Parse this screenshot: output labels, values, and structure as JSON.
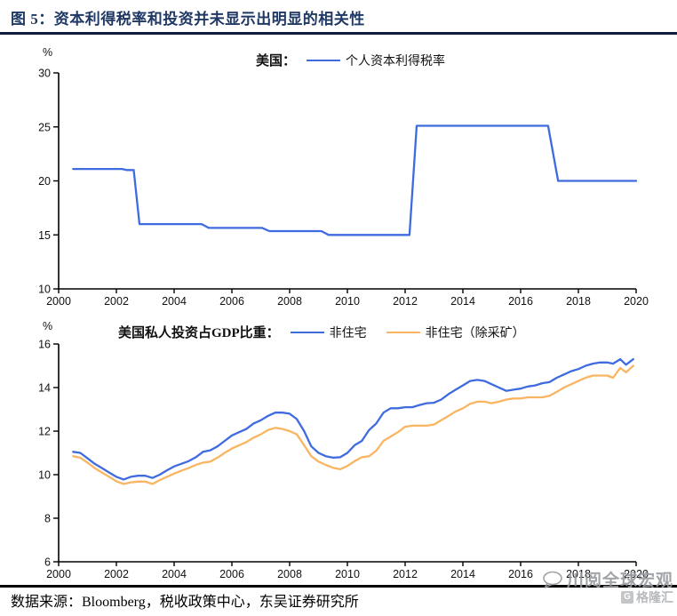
{
  "title": "图 5：资本利得税率和投资并未显示出明显的相关性",
  "footer": {
    "source": "数据来源：Bloomberg，税收政策中心，东吴证券研究所"
  },
  "watermark": {
    "line1": "川阅全球宏观",
    "line2": "格隆汇"
  },
  "colors": {
    "title_navy": "#1F3864",
    "line_blue": "#3E6BDF",
    "line_orange": "#F9B562"
  },
  "chart_data": [
    {
      "type": "line",
      "title": "美国：个人资本利得税率",
      "legend_prefix": "美国：",
      "unit": "%",
      "xlabel": "",
      "ylabel": "%",
      "xlim": [
        2000,
        2020
      ],
      "ylim": [
        10,
        30
      ],
      "x_ticks": [
        2000,
        2002,
        2004,
        2006,
        2008,
        2010,
        2012,
        2014,
        2016,
        2018,
        2020
      ],
      "y_ticks": [
        10,
        15,
        20,
        25,
        30
      ],
      "grid": false,
      "legend_position": "top",
      "series": [
        {
          "name": "个人资本利得税率",
          "color": "#3E6BDF",
          "points": [
            [
              2000.5,
              21.1
            ],
            [
              2002.2,
              21.1
            ],
            [
              2002.35,
              21.0
            ],
            [
              2002.6,
              21.0
            ],
            [
              2002.8,
              16.0
            ],
            [
              2004.95,
              16.0
            ],
            [
              2005.2,
              15.65
            ],
            [
              2007.05,
              15.65
            ],
            [
              2007.3,
              15.35
            ],
            [
              2009.1,
              15.35
            ],
            [
              2009.35,
              15.0
            ],
            [
              2012.15,
              15.0
            ],
            [
              2012.4,
              25.1
            ],
            [
              2016.95,
              25.1
            ],
            [
              2017.3,
              20.0
            ],
            [
              2020,
              20.0
            ]
          ]
        }
      ]
    },
    {
      "type": "line",
      "title": "美国私人投资占GDP比重",
      "legend_prefix": "美国私人投资占GDP比重：",
      "unit": "%",
      "xlabel": "",
      "ylabel": "%",
      "xlim": [
        2000,
        2020
      ],
      "ylim": [
        6,
        16
      ],
      "x_ticks": [
        2000,
        2002,
        2004,
        2006,
        2008,
        2010,
        2012,
        2014,
        2016,
        2018,
        2020
      ],
      "y_ticks": [
        6,
        8,
        10,
        12,
        14,
        16
      ],
      "grid": false,
      "legend_position": "top",
      "series": [
        {
          "name": "非住宅",
          "color": "#3E6BDF",
          "points": [
            [
              2000.5,
              11.05
            ],
            [
              2000.75,
              11.0
            ],
            [
              2001,
              10.75
            ],
            [
              2001.25,
              10.5
            ],
            [
              2001.5,
              10.3
            ],
            [
              2001.75,
              10.1
            ],
            [
              2002,
              9.9
            ],
            [
              2002.25,
              9.78
            ],
            [
              2002.5,
              9.9
            ],
            [
              2002.75,
              9.95
            ],
            [
              2003,
              9.95
            ],
            [
              2003.25,
              9.85
            ],
            [
              2003.5,
              10.0
            ],
            [
              2003.75,
              10.2
            ],
            [
              2004,
              10.38
            ],
            [
              2004.25,
              10.5
            ],
            [
              2004.5,
              10.62
            ],
            [
              2004.75,
              10.8
            ],
            [
              2005,
              11.05
            ],
            [
              2005.25,
              11.12
            ],
            [
              2005.5,
              11.3
            ],
            [
              2005.75,
              11.55
            ],
            [
              2006,
              11.8
            ],
            [
              2006.25,
              11.95
            ],
            [
              2006.5,
              12.1
            ],
            [
              2006.75,
              12.35
            ],
            [
              2007,
              12.5
            ],
            [
              2007.25,
              12.7
            ],
            [
              2007.5,
              12.85
            ],
            [
              2007.75,
              12.85
            ],
            [
              2008,
              12.8
            ],
            [
              2008.25,
              12.55
            ],
            [
              2008.5,
              12.0
            ],
            [
              2008.75,
              11.3
            ],
            [
              2009,
              11.0
            ],
            [
              2009.25,
              10.85
            ],
            [
              2009.5,
              10.78
            ],
            [
              2009.75,
              10.8
            ],
            [
              2010,
              11.0
            ],
            [
              2010.25,
              11.35
            ],
            [
              2010.5,
              11.55
            ],
            [
              2010.75,
              12.05
            ],
            [
              2011,
              12.35
            ],
            [
              2011.25,
              12.85
            ],
            [
              2011.5,
              13.05
            ],
            [
              2011.75,
              13.05
            ],
            [
              2012,
              13.1
            ],
            [
              2012.25,
              13.1
            ],
            [
              2012.5,
              13.2
            ],
            [
              2012.75,
              13.28
            ],
            [
              2013,
              13.3
            ],
            [
              2013.25,
              13.45
            ],
            [
              2013.5,
              13.7
            ],
            [
              2013.75,
              13.9
            ],
            [
              2014,
              14.1
            ],
            [
              2014.25,
              14.3
            ],
            [
              2014.5,
              14.35
            ],
            [
              2014.75,
              14.3
            ],
            [
              2015,
              14.15
            ],
            [
              2015.25,
              14.0
            ],
            [
              2015.5,
              13.85
            ],
            [
              2015.75,
              13.9
            ],
            [
              2016,
              13.95
            ],
            [
              2016.25,
              14.05
            ],
            [
              2016.5,
              14.1
            ],
            [
              2016.75,
              14.2
            ],
            [
              2017,
              14.25
            ],
            [
              2017.25,
              14.45
            ],
            [
              2017.5,
              14.6
            ],
            [
              2017.75,
              14.75
            ],
            [
              2018,
              14.85
            ],
            [
              2018.25,
              15.0
            ],
            [
              2018.5,
              15.1
            ],
            [
              2018.75,
              15.15
            ],
            [
              2019,
              15.15
            ],
            [
              2019.2,
              15.1
            ],
            [
              2019.45,
              15.3
            ],
            [
              2019.65,
              15.05
            ],
            [
              2019.9,
              15.3
            ]
          ]
        },
        {
          "name": "非住宅（除采矿）",
          "color": "#F9B562",
          "points": [
            [
              2000.5,
              10.85
            ],
            [
              2000.75,
              10.78
            ],
            [
              2001,
              10.55
            ],
            [
              2001.25,
              10.3
            ],
            [
              2001.5,
              10.1
            ],
            [
              2001.75,
              9.9
            ],
            [
              2002,
              9.7
            ],
            [
              2002.25,
              9.57
            ],
            [
              2002.5,
              9.65
            ],
            [
              2002.75,
              9.68
            ],
            [
              2003,
              9.68
            ],
            [
              2003.25,
              9.57
            ],
            [
              2003.5,
              9.75
            ],
            [
              2003.75,
              9.9
            ],
            [
              2004,
              10.05
            ],
            [
              2004.25,
              10.18
            ],
            [
              2004.5,
              10.3
            ],
            [
              2004.75,
              10.45
            ],
            [
              2005,
              10.55
            ],
            [
              2005.25,
              10.6
            ],
            [
              2005.5,
              10.78
            ],
            [
              2005.75,
              11.0
            ],
            [
              2006,
              11.2
            ],
            [
              2006.25,
              11.35
            ],
            [
              2006.5,
              11.5
            ],
            [
              2006.75,
              11.7
            ],
            [
              2007,
              11.85
            ],
            [
              2007.25,
              12.05
            ],
            [
              2007.5,
              12.15
            ],
            [
              2007.75,
              12.1
            ],
            [
              2008,
              12.0
            ],
            [
              2008.25,
              11.85
            ],
            [
              2008.5,
              11.35
            ],
            [
              2008.75,
              10.85
            ],
            [
              2009,
              10.6
            ],
            [
              2009.25,
              10.45
            ],
            [
              2009.5,
              10.32
            ],
            [
              2009.75,
              10.25
            ],
            [
              2010,
              10.4
            ],
            [
              2010.25,
              10.62
            ],
            [
              2010.5,
              10.8
            ],
            [
              2010.75,
              10.85
            ],
            [
              2011,
              11.1
            ],
            [
              2011.25,
              11.55
            ],
            [
              2011.5,
              11.75
            ],
            [
              2011.75,
              11.95
            ],
            [
              2012,
              12.2
            ],
            [
              2012.25,
              12.25
            ],
            [
              2012.5,
              12.25
            ],
            [
              2012.75,
              12.25
            ],
            [
              2013,
              12.3
            ],
            [
              2013.25,
              12.5
            ],
            [
              2013.5,
              12.7
            ],
            [
              2013.75,
              12.9
            ],
            [
              2014,
              13.05
            ],
            [
              2014.25,
              13.25
            ],
            [
              2014.5,
              13.35
            ],
            [
              2014.75,
              13.35
            ],
            [
              2015,
              13.28
            ],
            [
              2015.25,
              13.35
            ],
            [
              2015.5,
              13.45
            ],
            [
              2015.75,
              13.5
            ],
            [
              2016,
              13.5
            ],
            [
              2016.25,
              13.55
            ],
            [
              2016.5,
              13.55
            ],
            [
              2016.75,
              13.55
            ],
            [
              2017,
              13.62
            ],
            [
              2017.25,
              13.8
            ],
            [
              2017.5,
              14.0
            ],
            [
              2017.75,
              14.15
            ],
            [
              2018,
              14.3
            ],
            [
              2018.25,
              14.45
            ],
            [
              2018.5,
              14.55
            ],
            [
              2018.75,
              14.55
            ],
            [
              2019,
              14.55
            ],
            [
              2019.2,
              14.45
            ],
            [
              2019.45,
              14.9
            ],
            [
              2019.65,
              14.7
            ],
            [
              2019.9,
              15.0
            ]
          ]
        }
      ]
    }
  ]
}
